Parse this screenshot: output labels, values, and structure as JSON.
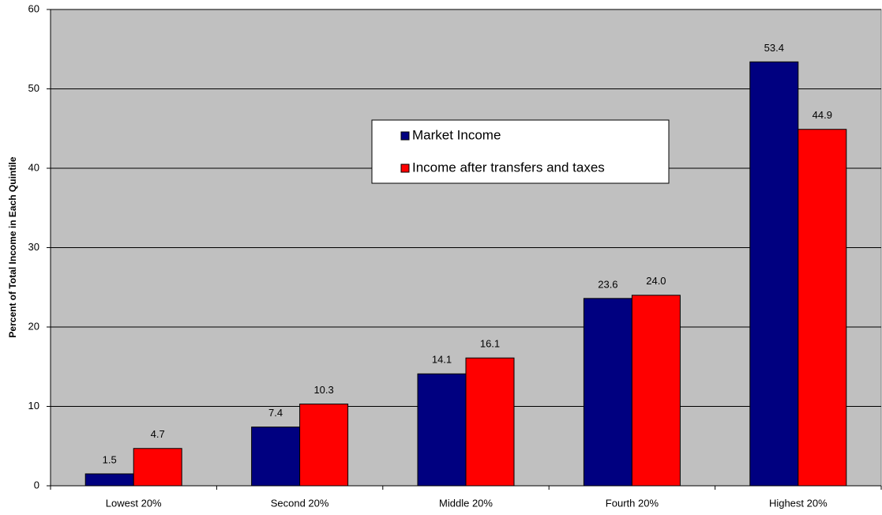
{
  "chart_data": {
    "type": "bar",
    "y_label": "Percent of Total Income in Each Quintile",
    "categories": [
      "Lowest 20%",
      "Second 20%",
      "Middle 20%",
      "Fourth 20%",
      "Highest 20%"
    ],
    "series": [
      {
        "name": "Market Income",
        "color": "#000080",
        "values": [
          1.5,
          7.4,
          14.1,
          23.6,
          53.4
        ],
        "value_labels": [
          "1.5",
          "7.4",
          "14.1",
          "23.6",
          "53.4"
        ]
      },
      {
        "name": "Income after transfers and taxes",
        "color": "#ff0000",
        "values": [
          4.7,
          10.3,
          16.1,
          24.0,
          44.9
        ],
        "value_labels": [
          "4.7",
          "10.3",
          "16.1",
          "24.0",
          "44.9"
        ]
      }
    ],
    "ylim": [
      0,
      60
    ],
    "yticks": [
      0,
      10,
      20,
      30,
      40,
      50,
      60
    ],
    "grid": true
  }
}
